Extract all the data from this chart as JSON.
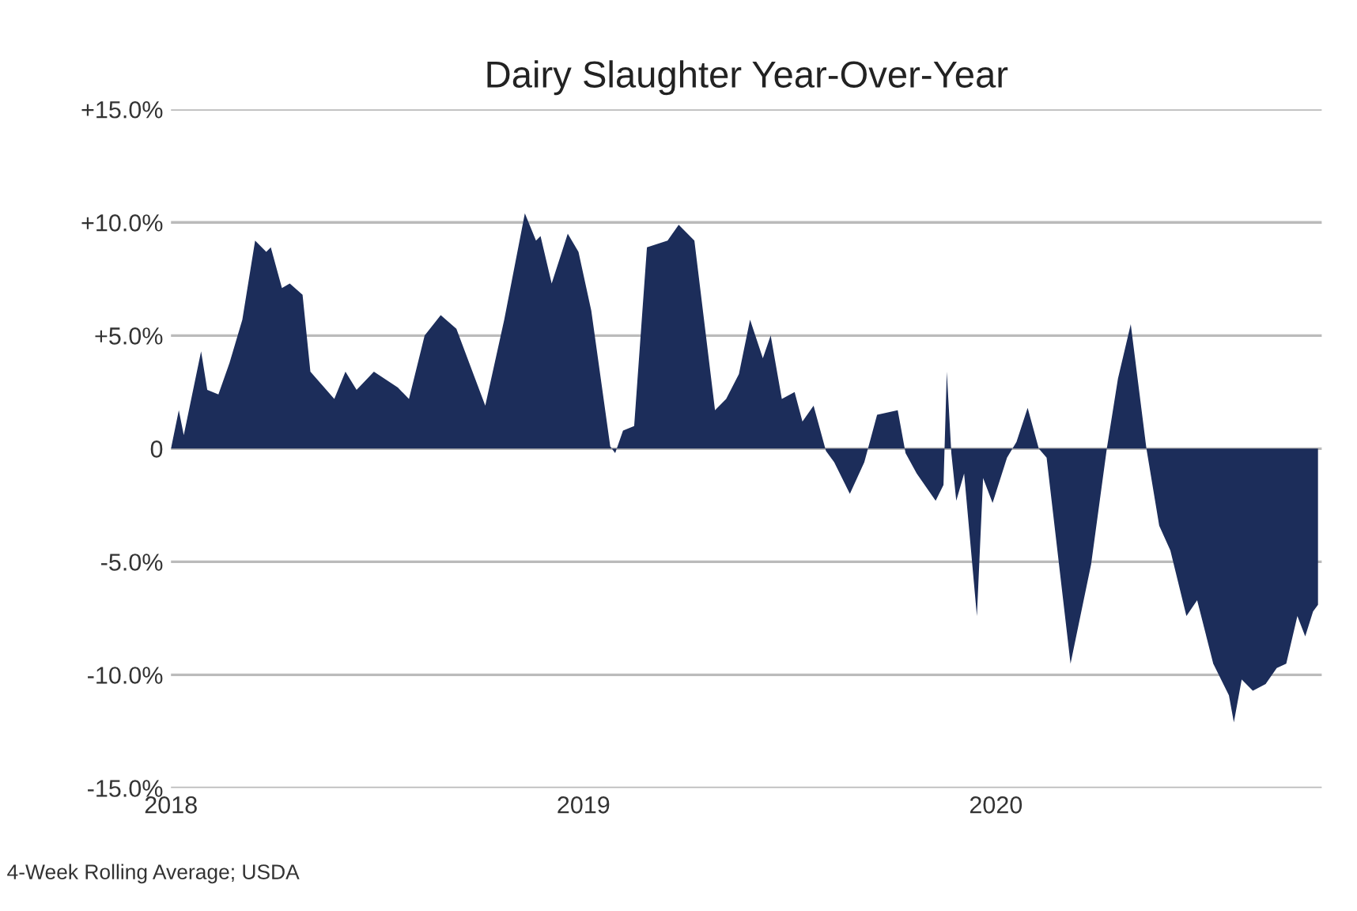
{
  "chart_data": {
    "type": "area",
    "title": "Dairy Slaughter Year-Over-Year",
    "x": [
      2018.0,
      2018.019,
      2018.031,
      2018.073,
      2018.088,
      2018.115,
      2018.142,
      2018.173,
      2018.204,
      2018.231,
      2018.242,
      2018.269,
      2018.288,
      2018.319,
      2018.338,
      2018.396,
      2018.423,
      2018.45,
      2018.492,
      2018.55,
      2018.577,
      2018.615,
      2018.654,
      2018.692,
      2018.762,
      2018.808,
      2018.858,
      2018.885,
      2018.896,
      2018.923,
      2018.962,
      2018.988,
      2019.019,
      2019.065,
      2019.077,
      2019.096,
      2019.123,
      2019.154,
      2019.204,
      2019.231,
      2019.269,
      2019.319,
      2019.346,
      2019.377,
      2019.404,
      2019.435,
      2019.454,
      2019.481,
      2019.512,
      2019.531,
      2019.558,
      2019.588,
      2019.608,
      2019.646,
      2019.681,
      2019.712,
      2019.762,
      2019.781,
      2019.808,
      2019.854,
      2019.873,
      2019.881,
      2019.892,
      2019.904,
      2019.923,
      2019.954,
      2019.969,
      2019.992,
      2020.027,
      2020.05,
      2020.077,
      2020.104,
      2020.123,
      2020.181,
      2020.231,
      2020.269,
      2020.296,
      2020.327,
      2020.365,
      2020.396,
      2020.423,
      2020.462,
      2020.488,
      2020.527,
      2020.565,
      2020.577,
      2020.596,
      2020.623,
      2020.654,
      2020.681,
      2020.704,
      2020.731,
      2020.75,
      2020.769,
      2020.781
    ],
    "series": [
      {
        "color": "#1c2d5a",
        "values": [
          0,
          1.7,
          0.6,
          4.3,
          2.6,
          2.4,
          3.8,
          5.7,
          9.2,
          8.7,
          8.9,
          7.1,
          7.3,
          6.8,
          3.4,
          2.2,
          3.4,
          2.6,
          3.4,
          2.7,
          2.2,
          5.0,
          5.9,
          5.3,
          1.9,
          5.7,
          10.4,
          9.2,
          9.4,
          7.3,
          9.5,
          8.7,
          6.1,
          0.1,
          -0.2,
          0.8,
          1.0,
          8.9,
          9.2,
          9.9,
          9.2,
          1.7,
          2.2,
          3.3,
          5.7,
          4.0,
          5.0,
          2.2,
          2.5,
          1.2,
          1.9,
          -0.1,
          -0.6,
          -2.0,
          -0.6,
          1.5,
          1.7,
          -0.2,
          -1.1,
          -2.3,
          -1.6,
          3.4,
          -0.2,
          -2.3,
          -1.1,
          -7.4,
          -1.3,
          -2.4,
          -0.4,
          0.3,
          1.8,
          0,
          -0.4,
          -9.5,
          -5.1,
          0,
          3.1,
          5.5,
          0,
          -3.4,
          -4.5,
          -7.4,
          -6.7,
          -9.5,
          -10.9,
          -12.1,
          -10.2,
          -10.7,
          -10.4,
          -9.7,
          -9.5,
          -7.4,
          -8.3,
          -7.2,
          -6.9
        ]
      }
    ],
    "xlim": [
      2018,
      2020.79
    ],
    "xticks": [
      2018,
      2019,
      2020
    ],
    "ylim": [
      -15,
      15
    ],
    "yticks": [
      {
        "value": 15,
        "label": "+15.0%"
      },
      {
        "value": 10,
        "label": "+10.0%"
      },
      {
        "value": 5,
        "label": "+5.0%"
      },
      {
        "value": 0,
        "label": "0"
      },
      {
        "value": -5,
        "label": "-5.0%"
      },
      {
        "value": -10,
        "label": "-10.0%"
      },
      {
        "value": -15,
        "label": "-15.0%"
      }
    ],
    "grid": "y",
    "annotations": [
      "4-Week Rolling Average; USDA"
    ]
  }
}
